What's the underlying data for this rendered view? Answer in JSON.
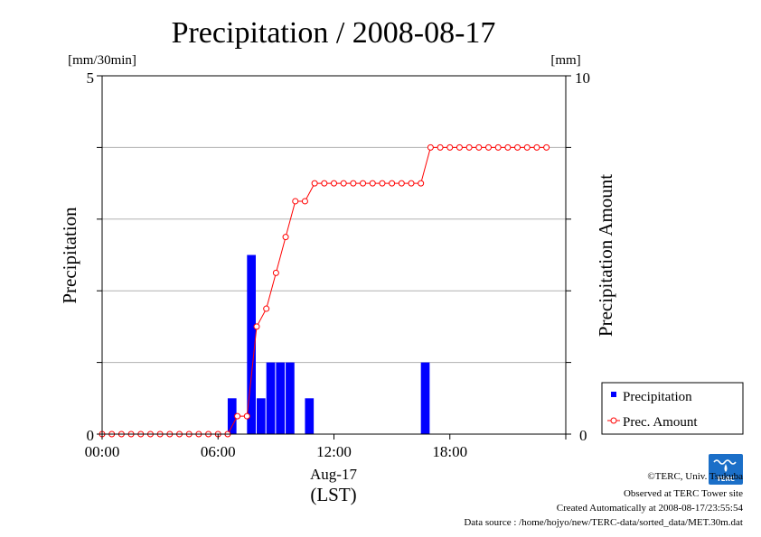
{
  "chart_data": {
    "type": "bar",
    "title": "Precipitation / 2008-08-17",
    "ylabel": "Precipitation",
    "ylabel_right": "Precipitation Amount",
    "y_unit": "[mm/30min]",
    "y_unit_right": "[mm]",
    "ylim": [
      0,
      5
    ],
    "ylim_right": [
      0,
      10
    ],
    "y_tick_labels": [
      "0",
      "5"
    ],
    "y_tick_labels_right": [
      "0",
      "10"
    ],
    "xlim_hours": [
      0,
      24
    ],
    "x_tick_labels": [
      "00:00",
      "06:00",
      "12:00",
      "18:00"
    ],
    "x_tick_hours": [
      0,
      6,
      12,
      18
    ],
    "xlabel": "Aug-17",
    "xlabel2": "(LST)",
    "grid": true,
    "legend_position": "bottom-right",
    "times": [
      "00:00",
      "00:30",
      "01:00",
      "01:30",
      "02:00",
      "02:30",
      "03:00",
      "03:30",
      "04:00",
      "04:30",
      "05:00",
      "05:30",
      "06:00",
      "06:30",
      "07:00",
      "07:30",
      "08:00",
      "08:30",
      "09:00",
      "09:30",
      "10:00",
      "10:30",
      "11:00",
      "11:30",
      "12:00",
      "12:30",
      "13:00",
      "13:30",
      "14:00",
      "14:30",
      "15:00",
      "15:30",
      "16:00",
      "16:30",
      "17:00",
      "17:30",
      "18:00",
      "18:30",
      "19:00",
      "19:30",
      "20:00",
      "20:30",
      "21:00",
      "21:30",
      "22:00",
      "22:30",
      "23:00"
    ],
    "series": [
      {
        "name": "Precipitation",
        "kind": "bar",
        "color": "#0000ff",
        "axis": "left",
        "values": [
          0,
          0,
          0,
          0,
          0,
          0,
          0,
          0,
          0,
          0,
          0,
          0,
          0,
          0.5,
          0,
          2.5,
          0.5,
          1,
          1,
          1,
          0,
          0.5,
          0,
          0,
          0,
          0,
          0,
          0,
          0,
          0,
          0,
          0,
          0,
          1,
          0,
          0,
          0,
          0,
          0,
          0,
          0,
          0,
          0,
          0,
          0,
          0,
          0
        ]
      },
      {
        "name": "Prec. Amount",
        "kind": "line",
        "color": "#ff0000",
        "marker": "open-circle",
        "axis": "right",
        "values": [
          0,
          0,
          0,
          0,
          0,
          0,
          0,
          0,
          0,
          0,
          0,
          0,
          0,
          0,
          0.5,
          0.5,
          3,
          3.5,
          4.5,
          5.5,
          6.5,
          6.5,
          7,
          7,
          7,
          7,
          7,
          7,
          7,
          7,
          7,
          7,
          7,
          7,
          8,
          8,
          8,
          8,
          8,
          8,
          8,
          8,
          8,
          8,
          8,
          8,
          8
        ]
      }
    ]
  },
  "footer": {
    "copyright": "©TERC, Univ. Tsukuba",
    "observed": "Observed at TERC Tower site",
    "created": "Created Automatically at 2008-08-17/23:55:54",
    "source": "Data source : /home/hojyo/new/TERC-data/sorted_data/MET.30m.dat"
  },
  "logo": {
    "text": "TERC",
    "color": "#1b6fc8"
  }
}
